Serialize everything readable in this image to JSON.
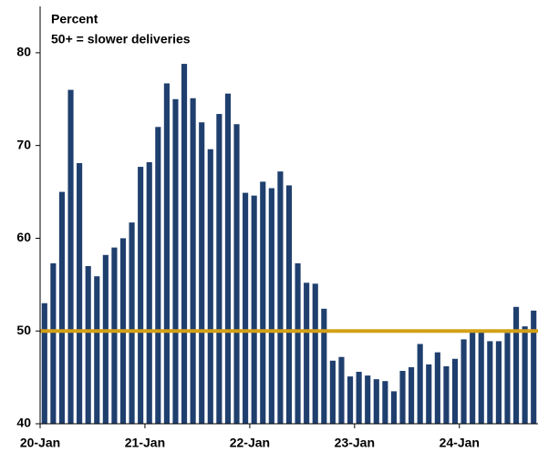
{
  "chart_data": {
    "type": "bar",
    "title": "Percent",
    "subtitle": "50+ = slower deliveries",
    "categories": [
      "20-Jan",
      null,
      null,
      null,
      null,
      null,
      null,
      null,
      null,
      null,
      null,
      null,
      "21-Jan",
      null,
      null,
      null,
      null,
      null,
      null,
      null,
      null,
      null,
      null,
      null,
      "22-Jan",
      null,
      null,
      null,
      null,
      null,
      null,
      null,
      null,
      null,
      null,
      null,
      "23-Jan",
      null,
      null,
      null,
      null,
      null,
      null,
      null,
      null,
      null,
      null,
      null,
      "24-Jan",
      null,
      null,
      null,
      null,
      null,
      null,
      null,
      null
    ],
    "values": [
      53.0,
      57.3,
      65.0,
      76.0,
      68.1,
      57.0,
      55.9,
      58.2,
      59.0,
      60.0,
      61.7,
      67.7,
      68.2,
      72.0,
      76.7,
      75.0,
      78.8,
      75.1,
      72.5,
      69.6,
      73.4,
      75.6,
      72.3,
      64.9,
      64.6,
      66.1,
      65.4,
      67.2,
      65.7,
      57.3,
      55.2,
      55.1,
      52.4,
      46.8,
      47.2,
      45.1,
      45.6,
      45.2,
      44.8,
      44.6,
      43.5,
      45.7,
      46.1,
      48.6,
      46.4,
      47.7,
      46.2,
      47.0,
      49.1,
      50.1,
      50.0,
      48.9,
      48.9,
      49.8,
      52.6,
      50.5,
      52.2
    ],
    "color": "#1f3f6e",
    "reference_line": {
      "value": 50,
      "color": "#d4a017"
    },
    "ylim": [
      40,
      85
    ],
    "yticks": [
      40,
      50,
      60,
      70,
      80
    ],
    "grid": false
  }
}
